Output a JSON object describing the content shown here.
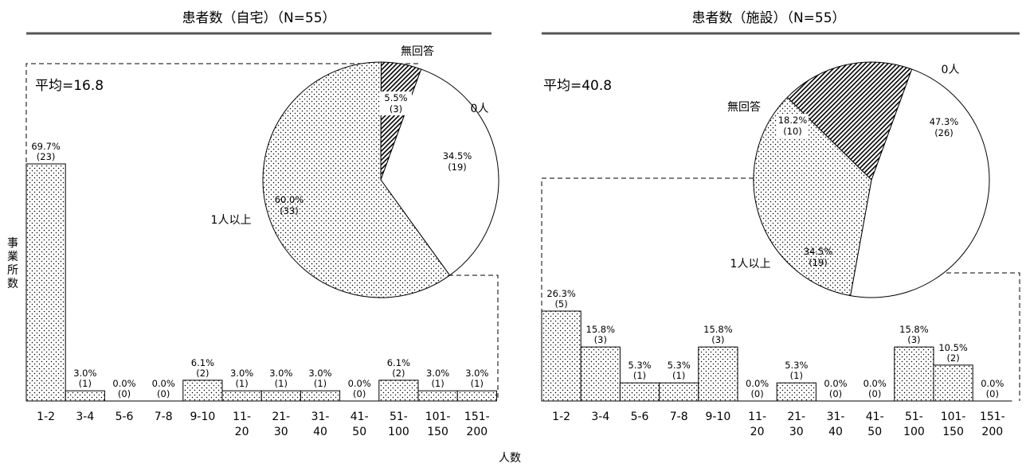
{
  "shared": {
    "y_axis_label": "事業所数",
    "x_axis_label": "人数",
    "categories": [
      [
        "1-2"
      ],
      [
        "3-4"
      ],
      [
        "5-6"
      ],
      [
        "7-8"
      ],
      [
        "9-10"
      ],
      [
        "11-",
        "20"
      ],
      [
        "21-",
        "30"
      ],
      [
        "31-",
        "40"
      ],
      [
        "41-",
        "50"
      ],
      [
        "51-",
        "100"
      ],
      [
        "101-",
        "150"
      ],
      [
        "151-",
        "200"
      ]
    ]
  },
  "chart_data": [
    {
      "type": "bar",
      "title": "患者数（自宅）（N=55）",
      "average_label": "平均=16.8",
      "xlabel": "人数",
      "ylabel": "事業所数",
      "categories": [
        "1-2",
        "3-4",
        "5-6",
        "7-8",
        "9-10",
        "11-20",
        "21-30",
        "31-40",
        "41-50",
        "51-100",
        "101-150",
        "151-200"
      ],
      "values_pct": [
        69.7,
        3.0,
        0.0,
        0.0,
        6.1,
        3.0,
        3.0,
        3.0,
        0.0,
        6.1,
        3.0,
        3.0
      ],
      "counts": [
        23,
        1,
        0,
        0,
        2,
        1,
        1,
        1,
        0,
        2,
        1,
        1
      ],
      "pct_labels": [
        "69.7%",
        "3.0%",
        "0.0%",
        "0.0%",
        "6.1%",
        "3.0%",
        "3.0%",
        "3.0%",
        "0.0%",
        "6.1%",
        "3.0%",
        "3.0%"
      ],
      "count_labels": [
        "(23)",
        "(1)",
        "(0)",
        "(0)",
        "(2)",
        "(1)",
        "(1)",
        "(1)",
        "(0)",
        "(2)",
        "(1)",
        "(1)"
      ],
      "pie": {
        "slices": [
          {
            "name": "0人",
            "value": 34.5,
            "count": 19,
            "pct_label": "34.5%",
            "count_label": "(19)",
            "fill": "white"
          },
          {
            "name": "1人以上",
            "value": 60.0,
            "count": 33,
            "pct_label": "60.0%",
            "count_label": "(33)",
            "fill": "dots"
          },
          {
            "name": "無回答",
            "value": 5.5,
            "count": 3,
            "pct_label": "5.5%",
            "count_label": "(3)",
            "fill": "hatch"
          }
        ]
      }
    },
    {
      "type": "bar",
      "title": "患者数（施設）（N=55）",
      "average_label": "平均=40.8",
      "xlabel": "人数",
      "ylabel": "事業所数",
      "categories": [
        "1-2",
        "3-4",
        "5-6",
        "7-8",
        "9-10",
        "11-20",
        "21-30",
        "31-40",
        "41-50",
        "51-100",
        "101-150",
        "151-200"
      ],
      "values_pct": [
        26.3,
        15.8,
        5.3,
        5.3,
        15.8,
        0.0,
        5.3,
        0.0,
        0.0,
        15.8,
        10.5,
        0.0
      ],
      "counts": [
        5,
        3,
        1,
        1,
        3,
        0,
        1,
        0,
        0,
        3,
        2,
        0
      ],
      "pct_labels": [
        "26.3%",
        "15.8%",
        "5.3%",
        "5.3%",
        "15.8%",
        "0.0%",
        "5.3%",
        "0.0%",
        "0.0%",
        "15.8%",
        "10.5%",
        "0.0%"
      ],
      "count_labels": [
        "(5)",
        "(3)",
        "(1)",
        "(1)",
        "(3)",
        "(0)",
        "(1)",
        "(0)",
        "(0)",
        "(3)",
        "(2)",
        "(0)"
      ],
      "pie": {
        "slices": [
          {
            "name": "0人",
            "value": 47.3,
            "count": 26,
            "pct_label": "47.3%",
            "count_label": "(26)",
            "fill": "white"
          },
          {
            "name": "1人以上",
            "value": 34.5,
            "count": 19,
            "pct_label": "34.5%",
            "count_label": "(19)",
            "fill": "dots"
          },
          {
            "name": "無回答",
            "value": 18.2,
            "count": 10,
            "pct_label": "18.2%",
            "count_label": "(10)",
            "fill": "hatch"
          }
        ]
      }
    }
  ]
}
